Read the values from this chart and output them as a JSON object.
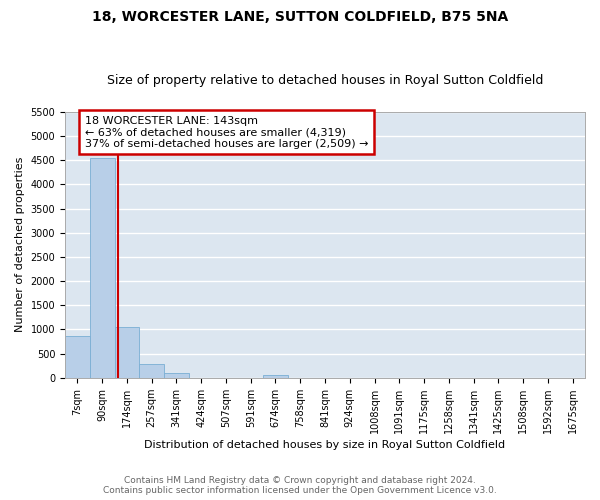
{
  "title": "18, WORCESTER LANE, SUTTON COLDFIELD, B75 5NA",
  "subtitle": "Size of property relative to detached houses in Royal Sutton Coldfield",
  "xlabel": "Distribution of detached houses by size in Royal Sutton Coldfield",
  "ylabel": "Number of detached properties",
  "categories": [
    "7sqm",
    "90sqm",
    "174sqm",
    "257sqm",
    "341sqm",
    "424sqm",
    "507sqm",
    "591sqm",
    "674sqm",
    "758sqm",
    "841sqm",
    "924sqm",
    "1008sqm",
    "1091sqm",
    "1175sqm",
    "1258sqm",
    "1341sqm",
    "1425sqm",
    "1508sqm",
    "1592sqm",
    "1675sqm"
  ],
  "values": [
    870,
    4540,
    1060,
    290,
    90,
    0,
    0,
    0,
    60,
    0,
    0,
    0,
    0,
    0,
    0,
    0,
    0,
    0,
    0,
    0,
    0
  ],
  "bar_color": "#b8cfe8",
  "bar_edge_color": "#7aaed4",
  "vline_color": "#cc0000",
  "annotation_text": "18 WORCESTER LANE: 143sqm\n← 63% of detached houses are smaller (4,319)\n37% of semi-detached houses are larger (2,509) →",
  "annotation_box_color": "#cc0000",
  "ylim": [
    0,
    5500
  ],
  "yticks": [
    0,
    500,
    1000,
    1500,
    2000,
    2500,
    3000,
    3500,
    4000,
    4500,
    5000,
    5500
  ],
  "background_color": "#dce6f0",
  "grid_color": "#ffffff",
  "footer_line1": "Contains HM Land Registry data © Crown copyright and database right 2024.",
  "footer_line2": "Contains public sector information licensed under the Open Government Licence v3.0.",
  "title_fontsize": 10,
  "subtitle_fontsize": 9,
  "xlabel_fontsize": 8,
  "ylabel_fontsize": 8,
  "tick_fontsize": 7,
  "annotation_fontsize": 8,
  "footer_fontsize": 6.5
}
